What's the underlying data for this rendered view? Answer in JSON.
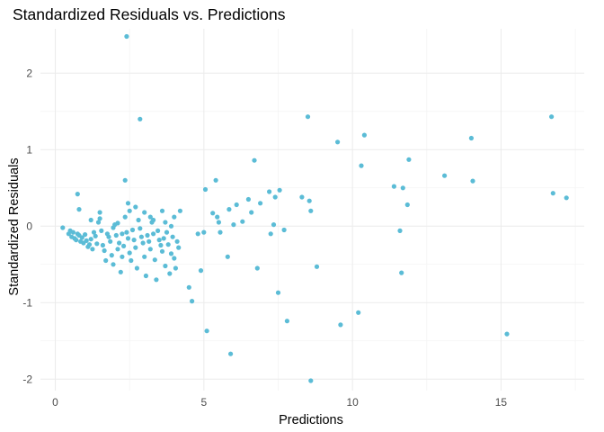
{
  "chart_data": {
    "type": "scatter",
    "title": "Standardized Residuals vs. Predictions",
    "xlabel": "Predictions",
    "ylabel": "Standardized Residuals",
    "xlim": [
      -0.5,
      17.8
    ],
    "ylim": [
      -2.15,
      2.58
    ],
    "x_ticks": [
      0,
      5,
      10,
      15
    ],
    "y_ticks": [
      -2,
      -1,
      0,
      1,
      2
    ],
    "x_tick_labels": [
      "0",
      "5",
      "10",
      "15"
    ],
    "y_tick_labels": [
      "-2",
      "-1",
      "0",
      "1",
      "2"
    ],
    "x_minor_ticks": [
      2.5,
      7.5,
      12.5,
      17.5
    ],
    "y_minor_ticks": [
      -1.5,
      -0.5,
      0.5,
      1.5
    ],
    "grid": true,
    "point_color": "#5BBCD6",
    "points": [
      [
        0.25,
        -0.02
      ],
      [
        0.45,
        -0.1
      ],
      [
        0.5,
        -0.06
      ],
      [
        0.55,
        -0.14
      ],
      [
        0.6,
        -0.08
      ],
      [
        0.65,
        -0.16
      ],
      [
        0.7,
        -0.18
      ],
      [
        0.75,
        -0.1
      ],
      [
        0.8,
        -0.12
      ],
      [
        0.85,
        -0.2
      ],
      [
        0.9,
        -0.15
      ],
      [
        0.95,
        -0.22
      ],
      [
        1.0,
        -0.11
      ],
      [
        1.05,
        -0.19
      ],
      [
        1.1,
        -0.27
      ],
      [
        1.15,
        -0.24
      ],
      [
        1.2,
        -0.17
      ],
      [
        1.25,
        -0.3
      ],
      [
        1.3,
        -0.08
      ],
      [
        1.35,
        -0.13
      ],
      [
        1.4,
        -0.23
      ],
      [
        1.45,
        0.05
      ],
      [
        1.5,
        0.1
      ],
      [
        1.55,
        -0.06
      ],
      [
        1.6,
        -0.25
      ],
      [
        1.65,
        -0.32
      ],
      [
        1.7,
        -0.45
      ],
      [
        1.75,
        -0.1
      ],
      [
        1.8,
        -0.14
      ],
      [
        1.85,
        -0.2
      ],
      [
        1.9,
        -0.38
      ],
      [
        1.95,
        -0.5
      ],
      [
        2.0,
        0.02
      ],
      [
        2.05,
        -0.12
      ],
      [
        2.1,
        -0.3
      ],
      [
        2.15,
        -0.22
      ],
      [
        2.2,
        -0.6
      ],
      [
        2.25,
        -0.4
      ],
      [
        2.3,
        -0.26
      ],
      [
        2.35,
        0.12
      ],
      [
        2.4,
        -0.08
      ],
      [
        2.45,
        -0.16
      ],
      [
        2.5,
        -0.35
      ],
      [
        2.55,
        -0.45
      ],
      [
        2.6,
        -0.05
      ],
      [
        2.65,
        -0.18
      ],
      [
        2.7,
        -0.28
      ],
      [
        2.75,
        -0.55
      ],
      [
        2.8,
        0.08
      ],
      [
        2.85,
        -0.03
      ],
      [
        2.9,
        -0.14
      ],
      [
        2.95,
        -0.22
      ],
      [
        3.0,
        -0.4
      ],
      [
        3.05,
        -0.65
      ],
      [
        3.1,
        -0.12
      ],
      [
        3.15,
        -0.2
      ],
      [
        3.2,
        -0.3
      ],
      [
        3.25,
        0.05
      ],
      [
        3.3,
        -0.1
      ],
      [
        3.35,
        -0.44
      ],
      [
        3.4,
        -0.7
      ],
      [
        3.45,
        -0.06
      ],
      [
        3.5,
        -0.18
      ],
      [
        3.55,
        -0.25
      ],
      [
        3.6,
        -0.33
      ],
      [
        3.65,
        -0.16
      ],
      [
        3.7,
        -0.52
      ],
      [
        3.75,
        -0.08
      ],
      [
        3.8,
        -0.24
      ],
      [
        3.85,
        -0.62
      ],
      [
        3.9,
        -0.36
      ],
      [
        3.95,
        -0.14
      ],
      [
        4.0,
        -0.42
      ],
      [
        4.05,
        -0.55
      ],
      [
        4.1,
        -0.2
      ],
      [
        4.15,
        -0.28
      ],
      [
        0.75,
        0.42
      ],
      [
        0.8,
        0.22
      ],
      [
        1.2,
        0.08
      ],
      [
        1.5,
        0.18
      ],
      [
        2.35,
        0.6
      ],
      [
        2.45,
        0.3
      ],
      [
        2.5,
        0.2
      ],
      [
        2.4,
        2.48
      ],
      [
        2.85,
        1.4
      ],
      [
        2.7,
        0.25
      ],
      [
        3.0,
        0.18
      ],
      [
        3.2,
        0.12
      ],
      [
        3.6,
        0.2
      ],
      [
        3.9,
        0.0
      ],
      [
        4.2,
        0.2
      ],
      [
        4.0,
        0.12
      ],
      [
        3.3,
        0.08
      ],
      [
        3.7,
        0.05
      ],
      [
        1.95,
        -0.02
      ],
      [
        2.1,
        0.04
      ],
      [
        2.25,
        -0.1
      ],
      [
        4.5,
        -0.8
      ],
      [
        4.6,
        -0.98
      ],
      [
        4.8,
        -0.1
      ],
      [
        4.9,
        -0.58
      ],
      [
        5.0,
        -0.08
      ],
      [
        5.05,
        0.48
      ],
      [
        5.1,
        -1.37
      ],
      [
        5.3,
        0.17
      ],
      [
        5.4,
        0.6
      ],
      [
        5.45,
        0.12
      ],
      [
        5.5,
        0.05
      ],
      [
        5.55,
        -0.08
      ],
      [
        5.8,
        -0.4
      ],
      [
        5.85,
        0.22
      ],
      [
        5.9,
        -1.67
      ],
      [
        6.0,
        0.02
      ],
      [
        6.1,
        0.28
      ],
      [
        6.3,
        0.06
      ],
      [
        6.5,
        0.35
      ],
      [
        6.6,
        0.18
      ],
      [
        6.7,
        0.86
      ],
      [
        6.8,
        -0.55
      ],
      [
        6.9,
        0.3
      ],
      [
        7.2,
        0.45
      ],
      [
        7.25,
        -0.1
      ],
      [
        7.35,
        0.02
      ],
      [
        7.4,
        0.38
      ],
      [
        7.5,
        -0.87
      ],
      [
        7.55,
        0.47
      ],
      [
        7.7,
        -0.05
      ],
      [
        7.8,
        -1.24
      ],
      [
        8.3,
        0.38
      ],
      [
        8.5,
        1.43
      ],
      [
        8.55,
        0.33
      ],
      [
        8.6,
        -2.02
      ],
      [
        8.8,
        -0.53
      ],
      [
        8.6,
        0.2
      ],
      [
        9.5,
        1.1
      ],
      [
        9.6,
        -1.29
      ],
      [
        10.2,
        -1.13
      ],
      [
        10.3,
        0.79
      ],
      [
        10.4,
        1.19
      ],
      [
        11.4,
        0.52
      ],
      [
        11.6,
        -0.06
      ],
      [
        11.65,
        -0.61
      ],
      [
        11.7,
        0.5
      ],
      [
        11.85,
        0.28
      ],
      [
        11.9,
        0.87
      ],
      [
        13.1,
        0.66
      ],
      [
        14.0,
        1.15
      ],
      [
        14.05,
        0.59
      ],
      [
        15.2,
        -1.41
      ],
      [
        16.7,
        1.43
      ],
      [
        16.75,
        0.43
      ],
      [
        17.2,
        0.37
      ]
    ]
  }
}
